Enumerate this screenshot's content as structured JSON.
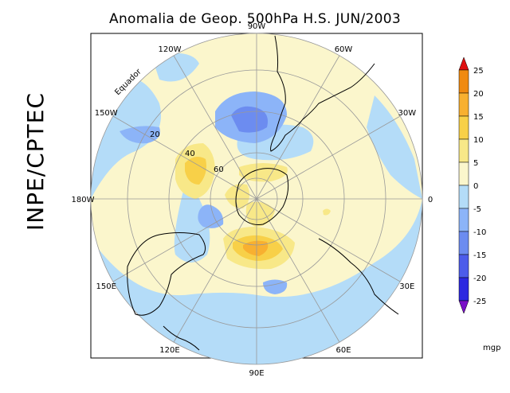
{
  "title": "Anomalia de Geop. 500hPa H.S. JUN/2003",
  "side_label": "INPE/CPTEC",
  "colorbar": {
    "levels": [
      "25",
      "20",
      "15",
      "10",
      "5",
      "0",
      "-5",
      "-10",
      "-15",
      "-20",
      "-25"
    ],
    "colors": [
      "#f08a10",
      "#f8b030",
      "#f8d048",
      "#f8e888",
      "#fbf6cc",
      "#b4dcf8",
      "#8cb4f8",
      "#6c8cf0",
      "#4c5cea",
      "#2c28e0"
    ],
    "top_arrow_color": "#e01010",
    "bottom_arrow_color": "#7a10c8",
    "unit": "mgp"
  },
  "map_labels": {
    "lon": [
      {
        "text": "90W",
        "angle": -90
      },
      {
        "text": "60W",
        "angle": -60
      },
      {
        "text": "30W",
        "angle": -30
      },
      {
        "text": "0",
        "angle": 0
      },
      {
        "text": "30E",
        "angle": 30
      },
      {
        "text": "60E",
        "angle": 60
      },
      {
        "text": "90E",
        "angle": 90
      },
      {
        "text": "120E",
        "angle": 120
      },
      {
        "text": "150E",
        "angle": 150
      },
      {
        "text": "180W",
        "angle": 180
      },
      {
        "text": "150W",
        "angle": -150
      },
      {
        "text": "120W",
        "angle": -120
      }
    ],
    "lat": [
      "20",
      "40",
      "60"
    ],
    "equator": "Equador"
  },
  "field_colors": {
    "pos_light": "#fbf6cc",
    "pos_mid": "#f8e888",
    "pos_high": "#f8d048",
    "pos_max": "#f8b030",
    "neg_light": "#b4dcf8",
    "neg_mid": "#8cb4f8",
    "neg_high": "#6c8cf0"
  }
}
